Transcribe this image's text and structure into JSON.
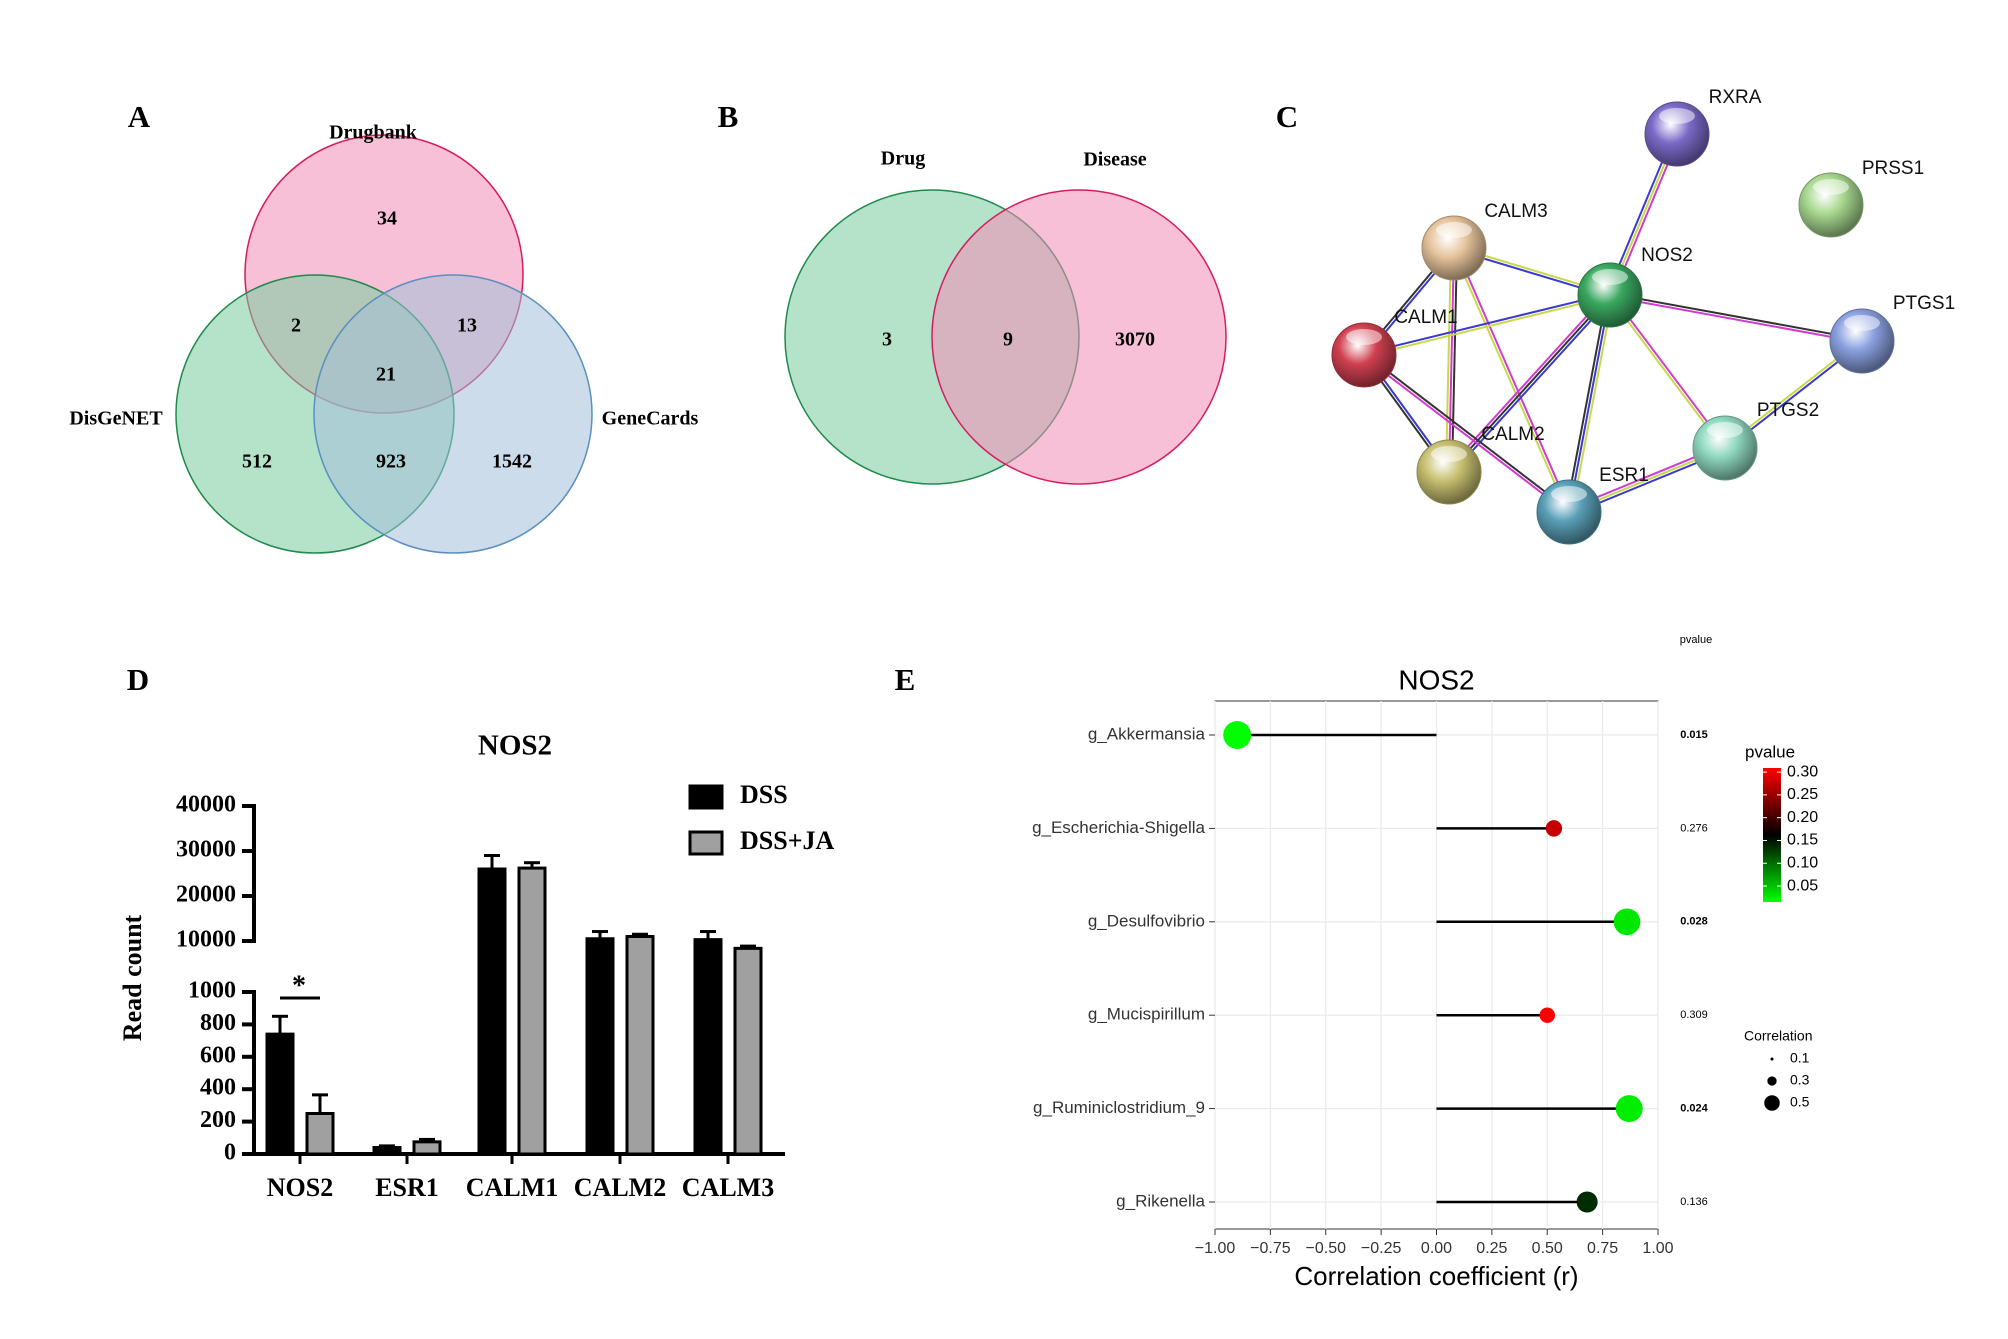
{
  "chart_data": [
    {
      "type": "venn",
      "label": "A",
      "sets": [
        {
          "name": "Drugbank",
          "color": "#f08cb5",
          "stroke": "#d81b60"
        },
        {
          "name": "DisGeNET",
          "color": "#78cc9f",
          "stroke": "#1e8a4c"
        },
        {
          "name": "GeneCards",
          "color": "#a3bfd8",
          "stroke": "#5b8fc0"
        }
      ],
      "values": [
        34,
        2,
        13,
        21,
        512,
        923,
        1542
      ]
    },
    {
      "type": "venn",
      "label": "B",
      "sets": [
        {
          "name": "Drug",
          "color": "#78cc9f",
          "stroke": "#1e8a4c"
        },
        {
          "name": "Disease",
          "color": "#f08cb5",
          "stroke": "#d81b60"
        }
      ],
      "values": [
        3,
        9,
        3070
      ]
    },
    {
      "type": "network",
      "label": "C",
      "nodes": [
        {
          "name": "RXRA",
          "color": "#7b6ac8"
        },
        {
          "name": "PRSS1",
          "color": "#a8d890"
        },
        {
          "name": "CALM3",
          "color": "#e6c49c"
        },
        {
          "name": "NOS2",
          "color": "#3aa860"
        },
        {
          "name": "PTGS1",
          "color": "#8aa0e0"
        },
        {
          "name": "CALM1",
          "color": "#d04050"
        },
        {
          "name": "PTGS2",
          "color": "#90d8c0"
        },
        {
          "name": "CALM2",
          "color": "#c8c070"
        },
        {
          "name": "ESR1",
          "color": "#5aa0b8"
        }
      ],
      "edges": [
        [
          "RXRA",
          "NOS2"
        ],
        [
          "CALM3",
          "NOS2"
        ],
        [
          "CALM3",
          "CALM1"
        ],
        [
          "CALM3",
          "CALM2"
        ],
        [
          "CALM3",
          "ESR1"
        ],
        [
          "NOS2",
          "CALM1"
        ],
        [
          "NOS2",
          "CALM2"
        ],
        [
          "NOS2",
          "PTGS1"
        ],
        [
          "NOS2",
          "PTGS2"
        ],
        [
          "NOS2",
          "ESR1"
        ],
        [
          "CALM1",
          "CALM2"
        ],
        [
          "CALM1",
          "ESR1"
        ],
        [
          "ESR1",
          "PTGS2"
        ],
        [
          "PTGS2",
          "PTGS1"
        ]
      ]
    },
    {
      "type": "bar",
      "label": "D",
      "title": "NOS2",
      "ylabel": "Read count",
      "categories": [
        "NOS2",
        "ESR1",
        "CALM1",
        "CALM2",
        "CALM3"
      ],
      "series": [
        {
          "name": "DSS",
          "color": "#000000",
          "values": [
            740,
            40,
            26000,
            10500,
            10300
          ],
          "errors": [
            110,
            10,
            3000,
            1600,
            1800
          ]
        },
        {
          "name": "DSS+JA",
          "color": "#a0a0a0",
          "values": [
            250,
            75,
            26200,
            11000,
            8700
          ],
          "errors": [
            115,
            15,
            1200,
            500,
            400
          ]
        }
      ],
      "ylim": [
        0,
        40000
      ],
      "ybreak": [
        1000,
        10000
      ],
      "yticks": [
        0,
        200,
        400,
        600,
        800,
        1000,
        10000,
        20000,
        30000,
        40000
      ],
      "annotation": "*"
    },
    {
      "type": "lollipop",
      "label": "E",
      "title": "NOS2",
      "xlabel": "Correlation coefficient (r)",
      "categories": [
        "g_Akkermansia",
        "g_Escherichia-Shigella",
        "g_Desulfovibrio",
        "g_Mucispirillum",
        "g_Ruminiclostridium_9",
        "g_Rikenella"
      ],
      "values": [
        -0.9,
        0.53,
        0.86,
        0.5,
        0.87,
        0.68
      ],
      "pvalue_header": "pvalue",
      "pvalues": [
        0.015,
        0.276,
        0.028,
        0.309,
        0.024,
        0.136
      ],
      "xlim": [
        -1,
        1
      ],
      "xticks": [
        {
          "value": -1,
          "label": "−1.00"
        },
        {
          "value": -0.75,
          "label": "−0.75"
        },
        {
          "value": -0.5,
          "label": "−0.50"
        },
        {
          "value": -0.25,
          "label": "−0.25"
        },
        {
          "value": 0,
          "label": "0.00"
        },
        {
          "value": 0.25,
          "label": "0.25"
        },
        {
          "value": 0.5,
          "label": "0.50"
        },
        {
          "value": 0.75,
          "label": "0.75"
        },
        {
          "value": 1,
          "label": "1.00"
        }
      ],
      "grid": true,
      "colorbar": {
        "title": "pvalue",
        "lim": [
          0.015,
          0.309
        ],
        "colors": [
          "#00ff00",
          "#000000",
          "#ff0000"
        ],
        "ticks": [
          {
            "value": 0.3,
            "label": "0.30"
          },
          {
            "value": 0.25,
            "label": "0.25"
          },
          {
            "value": 0.2,
            "label": "0.20"
          },
          {
            "value": 0.15,
            "label": "0.15"
          },
          {
            "value": 0.1,
            "label": "0.10"
          },
          {
            "value": 0.05,
            "label": "0.05"
          }
        ]
      },
      "size_legend": {
        "title": "Correlation",
        "values": [
          0.1,
          0.3,
          0.5
        ]
      }
    }
  ]
}
